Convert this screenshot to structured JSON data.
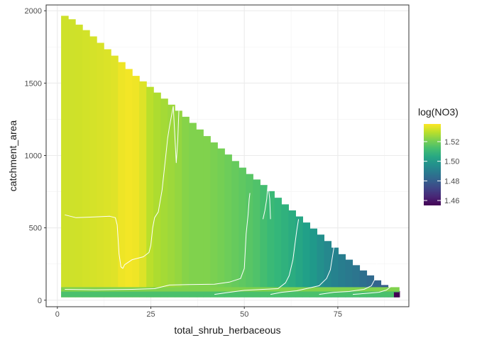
{
  "chart_data": {
    "type": "heatmap",
    "title": "",
    "xlabel": "total_shrub_herbaceous",
    "ylabel": "catchment_area",
    "xlim": [
      -3,
      94
    ],
    "ylim": [
      -45,
      2040
    ],
    "x_ticks": [
      0,
      25,
      50,
      75
    ],
    "y_ticks": [
      0,
      500,
      1000,
      1500,
      2000
    ],
    "x_tick_labels": [
      "0",
      "25",
      "50",
      "75"
    ],
    "y_tick_labels": [
      "0",
      "500",
      "1000",
      "1500",
      "2000"
    ],
    "grid": true,
    "colormap": "viridis",
    "cell_width_x": 1.9,
    "region": {
      "x_start": 1,
      "x_end": 91.5,
      "top_boundary": [
        [
          1,
          1965
        ],
        [
          3,
          1940
        ],
        [
          5,
          1900
        ],
        [
          7,
          1860
        ],
        [
          10,
          1790
        ],
        [
          13,
          1720
        ],
        [
          16,
          1650
        ],
        [
          20,
          1550
        ],
        [
          25,
          1450
        ],
        [
          30,
          1340
        ],
        [
          35,
          1230
        ],
        [
          40,
          1110
        ],
        [
          45,
          1000
        ],
        [
          50,
          880
        ],
        [
          55,
          780
        ],
        [
          60,
          660
        ],
        [
          65,
          550
        ],
        [
          70,
          440
        ],
        [
          75,
          320
        ],
        [
          80,
          220
        ],
        [
          85,
          130
        ],
        [
          88,
          80
        ],
        [
          91.5,
          55
        ]
      ],
      "bottom_band": [
        [
          1,
          20,
          60,
          1.514
        ],
        [
          1,
          60,
          90,
          1.522
        ],
        [
          90,
          20,
          55,
          1.455
        ]
      ]
    },
    "column_values": [
      [
        1,
        1.532
      ],
      [
        5,
        1.532
      ],
      [
        10,
        1.533
      ],
      [
        15,
        1.534
      ],
      [
        18,
        1.537
      ],
      [
        22,
        1.536
      ],
      [
        25,
        1.529
      ],
      [
        28,
        1.527
      ],
      [
        32,
        1.525
      ],
      [
        35,
        1.522
      ],
      [
        40,
        1.522
      ],
      [
        45,
        1.52
      ],
      [
        50,
        1.517
      ],
      [
        53,
        1.515
      ],
      [
        56,
        1.512
      ],
      [
        60,
        1.509
      ],
      [
        64,
        1.505
      ],
      [
        68,
        1.5
      ],
      [
        72,
        1.494
      ],
      [
        76,
        1.49
      ],
      [
        80,
        1.487
      ],
      [
        84,
        1.483
      ],
      [
        88,
        1.478
      ],
      [
        91,
        1.455
      ]
    ],
    "contours": [
      [
        [
          2,
          590
        ],
        [
          5,
          570
        ],
        [
          10,
          575
        ],
        [
          14,
          580
        ],
        [
          15.5,
          570
        ],
        [
          16,
          520
        ],
        [
          16.5,
          320
        ],
        [
          17,
          230
        ],
        [
          17.5,
          220
        ],
        [
          18,
          245
        ],
        [
          20,
          280
        ],
        [
          23,
          300
        ],
        [
          24.5,
          330
        ],
        [
          25,
          380
        ],
        [
          25.5,
          500
        ],
        [
          26,
          570
        ],
        [
          27,
          610
        ],
        [
          28,
          760
        ],
        [
          29,
          1000
        ],
        [
          29.5,
          1120
        ],
        [
          30,
          1200
        ],
        [
          31,
          1340
        ]
      ],
      [
        [
          31,
          1340
        ],
        [
          31.5,
          1100
        ],
        [
          31.8,
          950
        ],
        [
          32.2,
          1100
        ],
        [
          32.5,
          1310
        ]
      ],
      [
        [
          2,
          75
        ],
        [
          10,
          72
        ],
        [
          20,
          75
        ],
        [
          26,
          80
        ],
        [
          30,
          105
        ],
        [
          35,
          108
        ],
        [
          42,
          110
        ],
        [
          46,
          125
        ],
        [
          49,
          150
        ],
        [
          50,
          220
        ],
        [
          50.5,
          460
        ],
        [
          51,
          590
        ],
        [
          51.3,
          700
        ],
        [
          51.5,
          740
        ]
      ],
      [
        [
          42,
          40
        ],
        [
          46,
          55
        ],
        [
          50,
          68
        ],
        [
          55,
          75
        ],
        [
          59,
          80
        ],
        [
          61,
          120
        ],
        [
          62,
          170
        ],
        [
          63,
          280
        ],
        [
          64,
          480
        ],
        [
          64.5,
          560
        ]
      ],
      [
        [
          55,
          560
        ],
        [
          55.5,
          620
        ],
        [
          56,
          700
        ],
        [
          56.3,
          800
        ],
        [
          56.8,
          700
        ],
        [
          57,
          560
        ]
      ],
      [
        [
          57,
          40
        ],
        [
          60,
          55
        ],
        [
          64,
          65
        ],
        [
          70,
          100
        ],
        [
          72,
          150
        ],
        [
          73,
          210
        ],
        [
          74,
          370
        ]
      ],
      [
        [
          70,
          40
        ],
        [
          74,
          55
        ],
        [
          78,
          60
        ],
        [
          82,
          75
        ],
        [
          84,
          100
        ],
        [
          85,
          150
        ],
        [
          85.5,
          270
        ]
      ],
      [
        [
          79,
          40
        ],
        [
          83,
          48
        ],
        [
          86,
          55
        ],
        [
          88,
          70
        ],
        [
          89.5,
          100
        ],
        [
          90,
          140
        ]
      ]
    ],
    "legend": {
      "title": "log(NO3)",
      "position": "right",
      "min": 1.455,
      "max": 1.538,
      "ticks": [
        1.46,
        1.48,
        1.5,
        1.52
      ],
      "tick_labels": [
        "1.46",
        "1.48",
        "1.50",
        "1.52"
      ]
    }
  }
}
